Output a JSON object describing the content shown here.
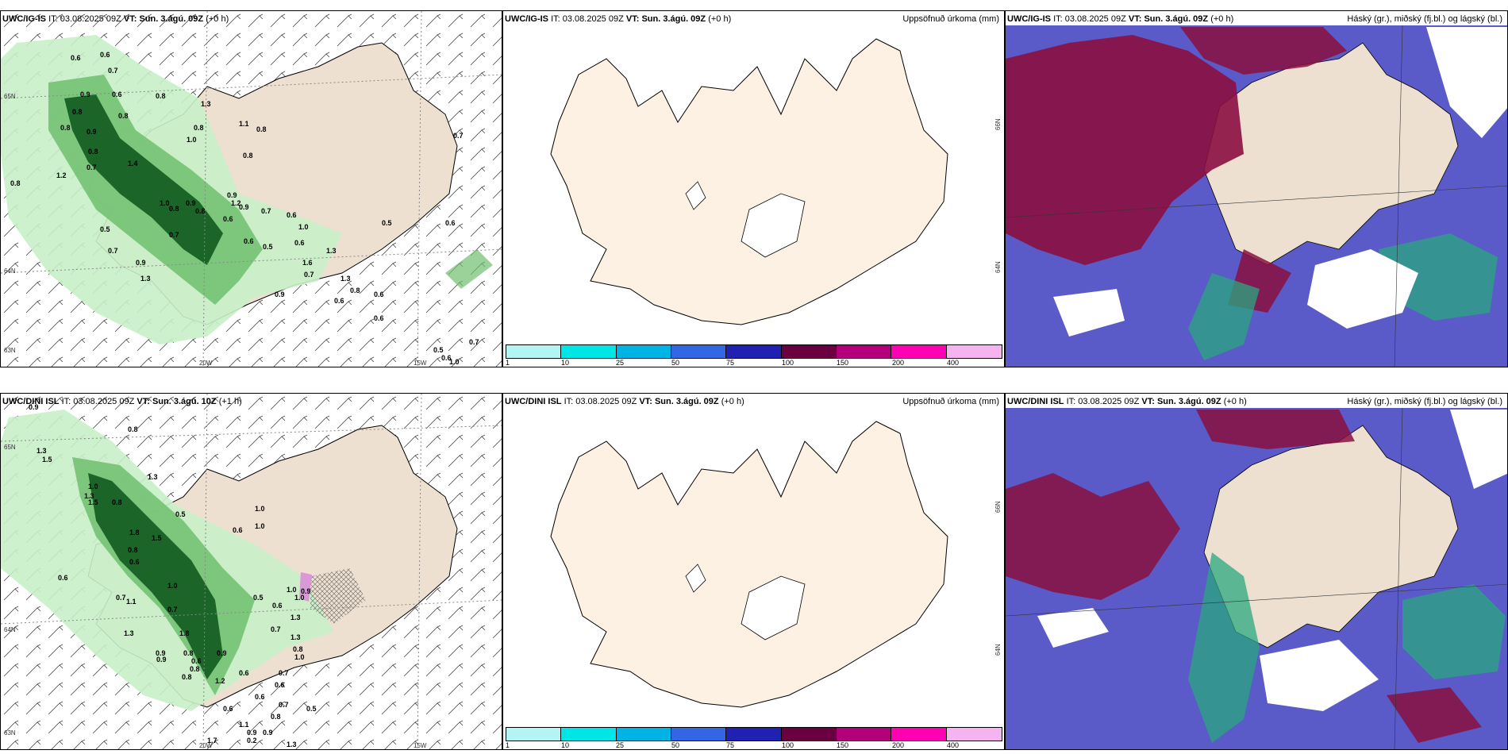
{
  "panels": {
    "p1": {
      "model": "UWC/IG-IS",
      "it_label": "IT:",
      "it_value": "03.08.2025 09Z",
      "vt_label": "VT:",
      "vt_value": "Sun. 3.ágú. 09Z",
      "lead": "(+0 h)",
      "lat_labels": [
        "65N",
        "64N",
        "63N"
      ],
      "lon_labels": [
        "20W",
        "15W"
      ],
      "precip_labels": [
        "0.6",
        "0.6",
        "0.7",
        "0.8",
        "0.9",
        "0.8",
        "0.8",
        "1.2",
        "0.6",
        "0.8",
        "0.9",
        "0.8",
        "1.0",
        "1.3",
        "0.8",
        "0.7",
        "1.4",
        "1.0",
        "0.8",
        "1.1",
        "0.8",
        "0.8",
        "1.2",
        "0.9",
        "0.9",
        "0.8",
        "0.7",
        "0.5",
        "0.7",
        "1.3",
        "0.9",
        "0.8",
        "0.6",
        "0.9",
        "0.6",
        "0.5",
        "0.6",
        "0.6",
        "1.0",
        "0.7",
        "1.6",
        "1.3",
        "0.7",
        "1.3",
        "0.8",
        "0.9",
        "0.6",
        "0.6",
        "0.6",
        "0.7",
        "0.6",
        "0.5",
        "0.7",
        "1.0",
        "0.5",
        "0.6"
      ]
    },
    "p2": {
      "model": "UWC/IG-IS",
      "it_label": "IT:",
      "it_value": "03.08.2025 09Z",
      "vt_label": "VT:",
      "vt_value": "Sun. 3.ágú. 09Z",
      "lead": "(+0 h)",
      "right_title": "Uppsöfnuð úrkoma (mm)",
      "lat_labels": [
        "66N",
        "64N"
      ]
    },
    "p3": {
      "model": "UWC/IG-IS",
      "it_label": "IT:",
      "it_value": "03.08.2025 09Z",
      "vt_label": "VT:",
      "vt_value": "Sun. 3.ágú. 09Z",
      "lead": "(+0 h)",
      "right_title": "Háský (gr.), miðský (fj.bl.) og lágský (bl.)"
    },
    "p4": {
      "model": "UWC/DINI ISL",
      "it_label": "IT:",
      "it_value": "03.08.2025 09Z",
      "vt_label": "VT:",
      "vt_value": "Sun. 3.ágú. 10Z",
      "lead": "(+1 h)",
      "lat_labels": [
        "65N",
        "64N",
        "63N"
      ],
      "lon_labels": [
        "20W",
        "15W"
      ],
      "precip_labels": [
        "0.9",
        "0.8",
        "1.3",
        "1.5",
        "1.3",
        "1.0",
        "1.3",
        "1.5",
        "0.8",
        "1.8",
        "1.5",
        "0.8",
        "0.5",
        "0.6",
        "1.0",
        "0.6",
        "1.0",
        "0.6",
        "1.0",
        "0.7",
        "1.1",
        "0.7",
        "1.3",
        "1.8",
        "0.9",
        "0.9",
        "0.8",
        "0.6",
        "0.8",
        "0.8",
        "1.0",
        "0.9",
        "0.5",
        "0.6",
        "0.9",
        "1.3",
        "0.7",
        "1.3",
        "0.8",
        "1.0",
        "0.7",
        "1.2",
        "0.6",
        "0.6",
        "0.6",
        "0.7",
        "0.5",
        "0.6",
        "0.9",
        "1.0",
        "0.8",
        "1.3",
        "1.1",
        "0.9",
        "0.2",
        "1.7",
        "0.7"
      ]
    },
    "p5": {
      "model": "UWC/DINI ISL",
      "it_label": "IT:",
      "it_value": "03.08.2025 09Z",
      "vt_label": "VT:",
      "vt_value": "Sun. 3.ágú. 09Z",
      "lead": "(+0 h)",
      "right_title": "Uppsöfnuð úrkoma (mm)",
      "lat_labels": [
        "66N",
        "64N"
      ]
    },
    "p6": {
      "model": "UWC/DINI ISL",
      "it_label": "IT:",
      "it_value": "03.08.2025 09Z",
      "vt_label": "VT:",
      "vt_value": "Sun. 3.ágú. 09Z",
      "lead": "(+0 h)",
      "right_title": "Háský (gr.), miðský (fj.bl.) og lágský (bl.)"
    }
  },
  "colorbar": {
    "colors": [
      "#b3f5f5",
      "#00e5e5",
      "#00b3e5",
      "#3366e5",
      "#2020b3",
      "#6b0040",
      "#b3007a",
      "#ff00b3",
      "#f5b3f0"
    ],
    "labels": [
      "1",
      "10",
      "25",
      "50",
      "75",
      "100",
      "150",
      "200",
      "400"
    ]
  },
  "colors": {
    "land": "#eee0d0",
    "land_blank": "#fdf1e4",
    "precip_light": "#c8efc8",
    "precip_mid": "#6fbf6f",
    "precip_dark": "#0f5a1e",
    "cloud_low": "#5a5ac8",
    "cloud_mid": "#8a1040",
    "cloud_high": "#2aa880"
  }
}
